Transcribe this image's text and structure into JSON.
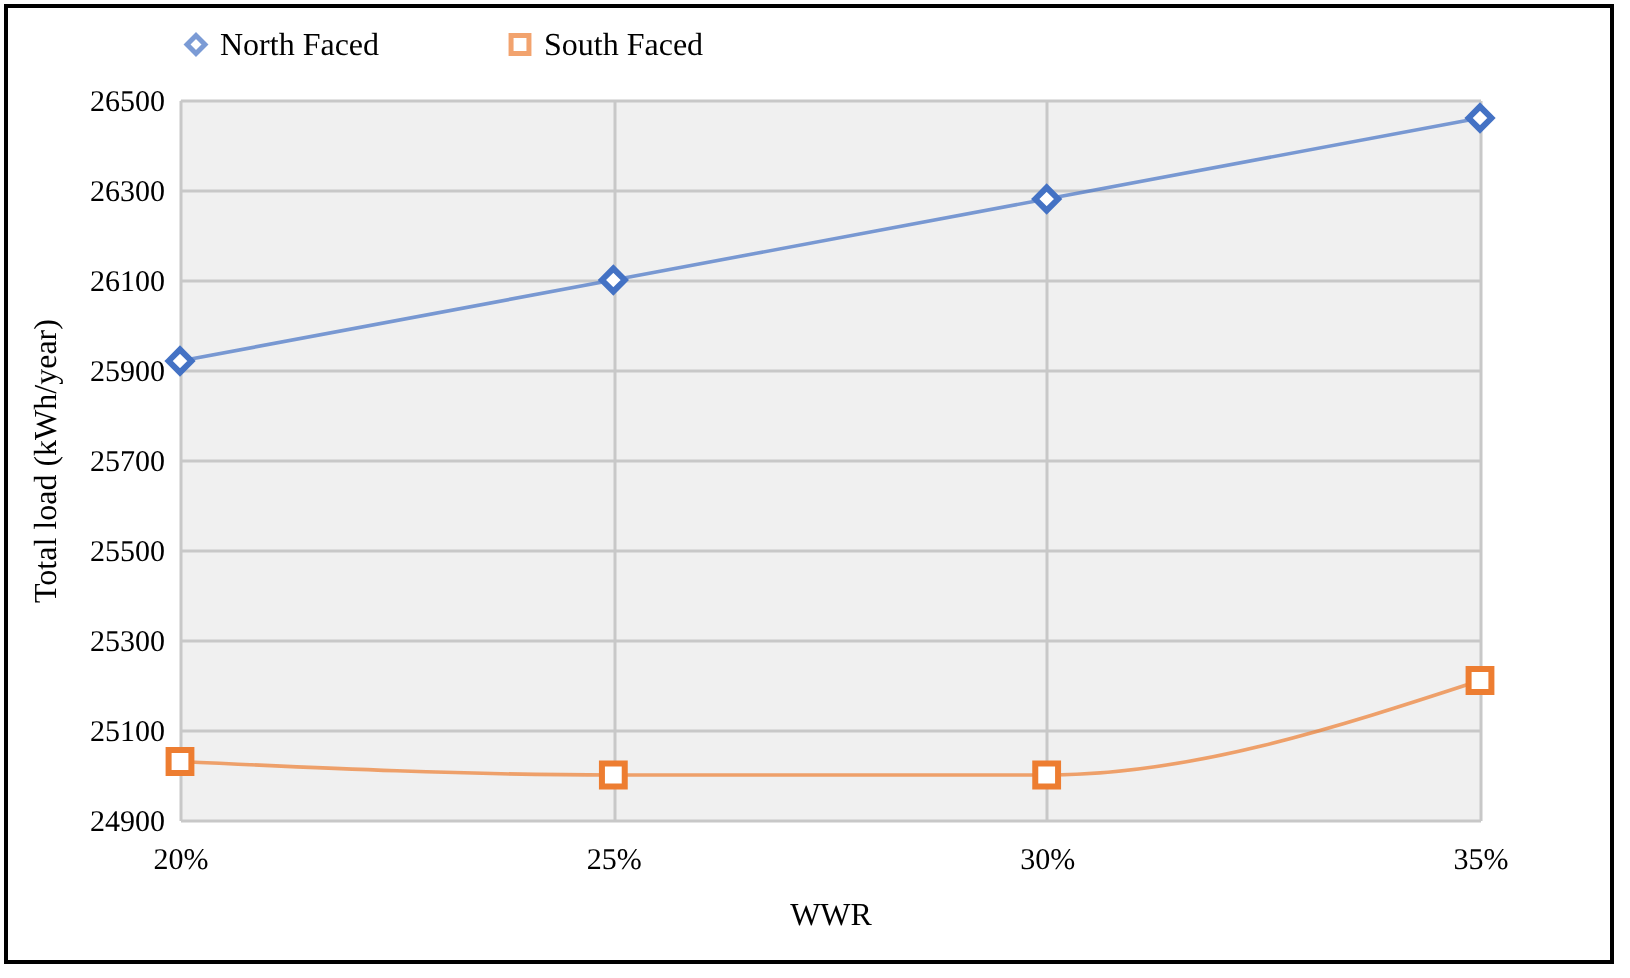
{
  "chart_data": {
    "type": "line",
    "xlabel": "WWR",
    "ylabel": "Total load  (kWh/year)",
    "categories": [
      "20%",
      "25%",
      "30%",
      "35%"
    ],
    "series": [
      {
        "name": "North Faced",
        "color": "#4472c4",
        "marker": "diamond",
        "values": [
          25920,
          26100,
          26280,
          26460
        ]
      },
      {
        "name": "South Faced",
        "color": "#ed7d31",
        "marker": "square",
        "values": [
          25030,
          25000,
          25000,
          25210
        ]
      }
    ],
    "ylim": [
      24900,
      26500
    ],
    "yticks": [
      24900,
      25100,
      25300,
      25500,
      25700,
      25900,
      26100,
      26300,
      26500
    ],
    "grid": true,
    "legend": "top"
  }
}
